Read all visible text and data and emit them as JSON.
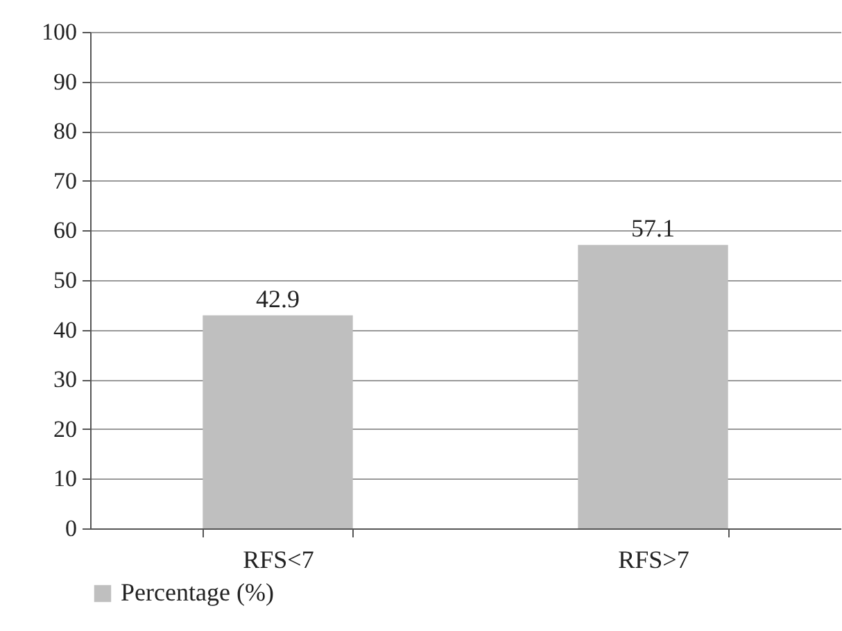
{
  "chart_data": {
    "type": "bar",
    "categories": [
      "RFS<7",
      "RFS>7"
    ],
    "series": [
      {
        "name": "Percentage (%)",
        "color": "#bfbfbf",
        "values": [
          42.9,
          57.1
        ]
      }
    ],
    "ylim": [
      0,
      100
    ],
    "yticks": [
      0,
      10,
      20,
      30,
      40,
      50,
      60,
      70,
      80,
      90,
      100
    ],
    "grid": "y",
    "legend": "bottom",
    "data_labels": true
  }
}
